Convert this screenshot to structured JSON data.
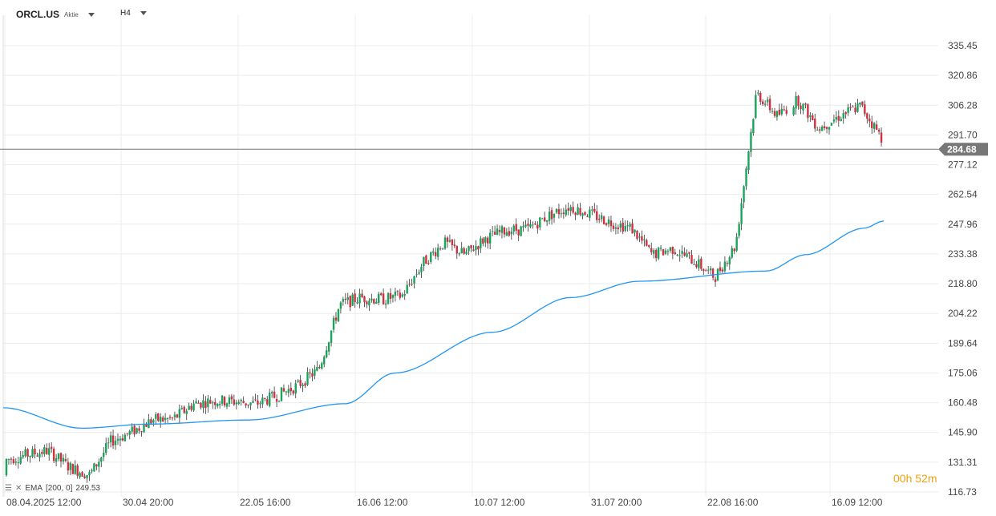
{
  "header": {
    "symbol": "ORCL.US",
    "instrument_type": "Aktie",
    "timeframe": "H4"
  },
  "indicator": {
    "label": "EMA",
    "params": "[200, 0]",
    "value": "249.53",
    "color": "#2196f3"
  },
  "countdown": {
    "hours": "00",
    "hours_unit": "h",
    "minutes": "52",
    "minutes_unit": "m"
  },
  "colors": {
    "up": "#1aa35a",
    "down": "#d0303f",
    "price_line": "#777777",
    "grid": "#ececec"
  },
  "chart_data": {
    "type": "candlestick",
    "current_price": "284.68",
    "y_ticks": [
      "335.45",
      "320.86",
      "306.28",
      "291.70",
      "277.12",
      "262.54",
      "247.96",
      "233.38",
      "218.80",
      "204.22",
      "189.64",
      "175.06",
      "160.48",
      "145.90",
      "131.31",
      "116.73"
    ],
    "ylim": [
      116.73,
      335.45
    ],
    "x_ticks": [
      "08.04.2025  12:00",
      "30.04  20:00",
      "22.05  16:00",
      "16.06  12:00",
      "10.07  12:00",
      "31.07  20:00",
      "22.08  16:00",
      "16.09  12:00"
    ],
    "ohlc_anchors": [
      [
        125,
        140
      ],
      [
        142,
        128
      ],
      [
        136,
        138
      ],
      [
        128,
        130
      ],
      [
        122,
        128
      ],
      [
        140,
        143
      ],
      [
        144,
        148
      ],
      [
        150,
        154
      ],
      [
        148,
        157
      ],
      [
        158,
        162
      ],
      [
        160,
        163
      ],
      [
        164,
        158
      ],
      [
        160,
        160
      ],
      [
        163,
        165
      ],
      [
        166,
        172
      ],
      [
        176,
        178
      ],
      [
        203,
        214
      ],
      [
        216,
        208
      ],
      [
        208,
        214
      ],
      [
        214,
        212
      ],
      [
        228,
        230
      ],
      [
        240,
        238
      ],
      [
        236,
        230
      ],
      [
        232,
        250
      ],
      [
        246,
        244
      ],
      [
        243,
        248
      ],
      [
        254,
        250
      ],
      [
        258,
        255
      ],
      [
        250,
        256
      ],
      [
        250,
        248
      ],
      [
        242,
        250
      ],
      [
        230,
        236
      ],
      [
        238,
        234
      ],
      [
        232,
        228
      ],
      [
        220,
        224
      ],
      [
        235,
        240
      ],
      [
        305,
        320
      ],
      [
        300,
        302
      ],
      [
        304,
        314
      ],
      [
        298,
        292
      ],
      [
        296,
        306
      ],
      [
        312,
        300
      ],
      [
        296,
        285
      ]
    ],
    "ema_anchors": [
      [
        0,
        158
      ],
      [
        0.08,
        148
      ],
      [
        0.15,
        150
      ],
      [
        0.25,
        152
      ],
      [
        0.35,
        160
      ],
      [
        0.4,
        175
      ],
      [
        0.5,
        195
      ],
      [
        0.58,
        212
      ],
      [
        0.65,
        220
      ],
      [
        0.78,
        225
      ],
      [
        0.82,
        233
      ],
      [
        0.88,
        246
      ],
      [
        0.9,
        249.53
      ]
    ]
  }
}
